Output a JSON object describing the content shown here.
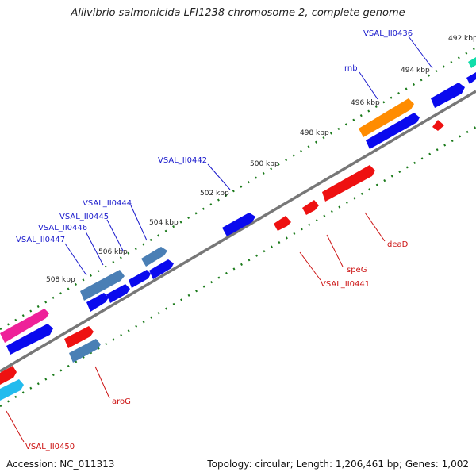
{
  "title": "Aliivibrio salmonicida LFI1238 chromosome 2, complete genome",
  "footer": {
    "accession": "Accession: NC_011313",
    "topology": "Topology: circular; Length: 1,206,461 bp; Genes: 1,002"
  },
  "scale_labels": [
    "492 kbp",
    "494 kbp",
    "496 kbp",
    "498 kbp",
    "500 kbp",
    "502 kbp",
    "504 kbp",
    "506 kbp",
    "508 kbp"
  ],
  "gene_labels_forward": [
    "VSAL_II0436",
    "rnb",
    "VSAL_II0442",
    "VSAL_II0444",
    "VSAL_II0445",
    "VSAL_II0446",
    "VSAL_II0447"
  ],
  "gene_labels_reverse": [
    "deaD",
    "speG",
    "VSAL_II0441",
    "aroG",
    "VSAL_II0450"
  ],
  "colors": {
    "forward_gene": "#0a0aee",
    "reverse_gene": "#ee1111",
    "highlight_orange": "#ff8c00",
    "highlight_steel": "#4a7fb5",
    "highlight_magenta": "#ee2299",
    "highlight_cyan": "#22bbee",
    "highlight_teal": "#11ddaa",
    "backbone": "#777777",
    "tick": "#1a7a1a",
    "forward_label": "#1a1acc",
    "reverse_label": "#cc1111"
  }
}
